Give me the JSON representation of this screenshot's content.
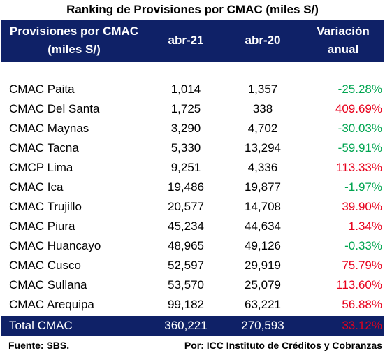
{
  "title": "Ranking de Provisiones por CMAC (miles S/)",
  "header": {
    "col_name_line1": "Provisiones por CMAC",
    "col_name_line2": "(miles S/)",
    "col_a21": "abr-21",
    "col_a20": "abr-20",
    "col_var_line1": "Variación",
    "col_var_line2": "anual"
  },
  "rows": [
    {
      "name": "CMAC Paita",
      "a21": "1,014",
      "a20": "1,357",
      "var": "-25.28%"
    },
    {
      "name": "CMAC Del Santa",
      "a21": "1,725",
      "a20": "338",
      "var": "409.69%"
    },
    {
      "name": "CMAC Maynas",
      "a21": "3,290",
      "a20": "4,702",
      "var": "-30.03%"
    },
    {
      "name": "CMAC Tacna",
      "a21": "5,330",
      "a20": "13,294",
      "var": "-59.91%"
    },
    {
      "name": "CMCP Lima",
      "a21": "9,251",
      "a20": "4,336",
      "var": "113.33%"
    },
    {
      "name": "CMAC Ica",
      "a21": "19,486",
      "a20": "19,877",
      "var": "-1.97%"
    },
    {
      "name": "CMAC Trujillo",
      "a21": "20,577",
      "a20": "14,708",
      "var": "39.90%"
    },
    {
      "name": "CMAC Piura",
      "a21": "45,234",
      "a20": "44,634",
      "var": "1.34%"
    },
    {
      "name": "CMAC Huancayo",
      "a21": "48,965",
      "a20": "49,126",
      "var": "-0.33%"
    },
    {
      "name": "CMAC Cusco",
      "a21": "52,597",
      "a20": "29,919",
      "var": "75.79%"
    },
    {
      "name": "CMAC Sullana",
      "a21": "53,570",
      "a20": "25,079",
      "var": "113.60%"
    },
    {
      "name": "CMAC Arequipa",
      "a21": "99,182",
      "a20": "63,221",
      "var": "56.88%"
    }
  ],
  "total": {
    "name": "Total CMAC",
    "a21": "360,221",
    "a20": "270,593",
    "var": "33.12%"
  },
  "footer": {
    "source": "Fuente: SBS.",
    "author": "Por: ICC Instituto de Créditos y Cobranzas"
  },
  "colors": {
    "header_bg": "#0f2167",
    "positive": "#e8001c",
    "negative": "#00a550"
  }
}
